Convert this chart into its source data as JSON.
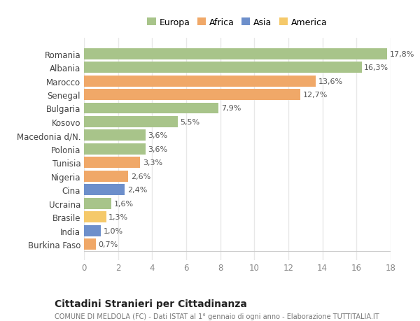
{
  "countries": [
    "Burkina Faso",
    "India",
    "Brasile",
    "Ucraina",
    "Cina",
    "Nigeria",
    "Tunisia",
    "Polonia",
    "Macedonia d/N.",
    "Kosovo",
    "Bulgaria",
    "Senegal",
    "Marocco",
    "Albania",
    "Romania"
  ],
  "values": [
    0.7,
    1.0,
    1.3,
    1.6,
    2.4,
    2.6,
    3.3,
    3.6,
    3.6,
    5.5,
    7.9,
    12.7,
    13.6,
    16.3,
    17.8
  ],
  "labels": [
    "0,7%",
    "1,0%",
    "1,3%",
    "1,6%",
    "2,4%",
    "2,6%",
    "3,3%",
    "3,6%",
    "3,6%",
    "5,5%",
    "7,9%",
    "12,7%",
    "13,6%",
    "16,3%",
    "17,8%"
  ],
  "colors": [
    "#f0a868",
    "#6d8fcb",
    "#f5c96a",
    "#a8c48a",
    "#6d8fcb",
    "#f0a868",
    "#f0a868",
    "#a8c48a",
    "#a8c48a",
    "#a8c48a",
    "#a8c48a",
    "#f0a868",
    "#f0a868",
    "#a8c48a",
    "#a8c48a"
  ],
  "legend_labels": [
    "Europa",
    "Africa",
    "Asia",
    "America"
  ],
  "legend_colors": [
    "#a8c48a",
    "#f0a868",
    "#6d8fcb",
    "#f5c96a"
  ],
  "title": "Cittadini Stranieri per Cittadinanza",
  "subtitle": "COMUNE DI MELDOLA (FC) - Dati ISTAT al 1° gennaio di ogni anno - Elaborazione TUTTITALIA.IT",
  "xlim": [
    0,
    18
  ],
  "xticks": [
    0,
    2,
    4,
    6,
    8,
    10,
    12,
    14,
    16,
    18
  ],
  "background_color": "#ffffff",
  "grid_color": "#e8e8e8",
  "bar_height": 0.82
}
